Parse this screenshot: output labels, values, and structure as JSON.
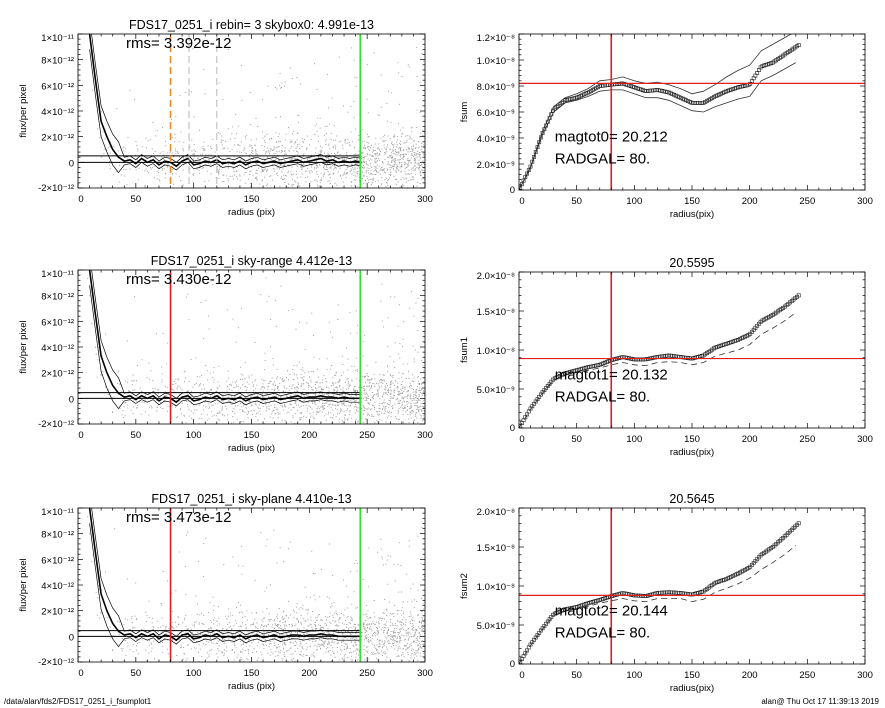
{
  "footer": {
    "path": "/data/alan/fds2/FDS17_0251_i_fsumplot1",
    "stamp": "alan@  Thu Oct 17 11:39:13 2019"
  },
  "colors": {
    "scatter": "#a0a0a0",
    "profile": "#000000",
    "orange": "#f08a1e",
    "red": "#e0201e",
    "green": "#33dd33",
    "grey_dash": "#b8b8b8"
  },
  "chart_data": [
    {
      "type": "scatter",
      "title": "FDS17_0251_i rebin= 3    skybox0:  4.991e-13",
      "annotation": "rms= 3.392e-12",
      "xlabel": "radius (pix)",
      "ylabel": "flux/per pixel",
      "xlim": [
        0,
        300
      ],
      "ylim": [
        -2e-12,
        1e-11
      ],
      "xticks": [
        0,
        50,
        100,
        150,
        200,
        250,
        300
      ],
      "yticks": [
        -2e-12,
        0,
        2e-12,
        4e-12,
        6e-12,
        8e-12,
        1e-11
      ],
      "ytick_labels": [
        "-2×10⁻¹²",
        "0",
        "2×10⁻¹²",
        "4×10⁻¹²",
        "6×10⁻¹²",
        "8×10⁻¹²",
        "1×10⁻¹¹"
      ],
      "hlines": [
        0,
        4.991e-13
      ],
      "vlines": [
        {
          "x": 80,
          "color": "orange",
          "dash": true
        },
        {
          "x": 96,
          "color": "grey_dash",
          "dash": true
        },
        {
          "x": 120,
          "color": "grey_dash",
          "dash": true
        },
        {
          "x": 244,
          "color": "green",
          "dash": false
        }
      ],
      "profile": {
        "r": [
          10,
          15,
          20,
          25,
          30,
          35,
          40,
          45,
          50,
          55,
          60,
          65,
          70,
          75,
          80,
          85,
          90,
          95,
          100,
          105,
          110,
          115,
          120,
          125,
          130,
          135,
          140,
          145,
          150,
          155,
          160,
          165,
          170,
          175,
          180,
          185,
          190,
          195,
          200,
          205,
          210,
          215,
          220,
          225,
          230,
          235,
          240,
          245
        ],
        "flux": [
          1e-11,
          6.5e-12,
          3.2e-12,
          2e-12,
          1e-12,
          4e-13,
          1e-13,
          2e-13,
          -1e-13,
          3e-13,
          0,
          2e-13,
          -2e-13,
          1e-13,
          0,
          -3e-13,
          1e-13,
          3e-13,
          -2e-13,
          -1e-13,
          1e-13,
          0,
          2e-13,
          -1e-13,
          0,
          -1e-13,
          1e-13,
          -2e-13,
          0,
          1e-13,
          -1e-13,
          0,
          1e-13,
          -1e-13,
          0,
          1e-13,
          2e-13,
          0,
          1e-13,
          2e-13,
          3e-13,
          1e-13,
          2e-13,
          0,
          1e-13,
          0,
          1e-13,
          0
        ]
      }
    },
    {
      "type": "line",
      "title": "",
      "annotation": "magtot0=  20.212",
      "annotation2": " RADGAL=     80.",
      "xlabel": "radius(pix)",
      "ylabel": "fsum",
      "xlim": [
        0,
        300
      ],
      "ylim": [
        0,
        1.2e-08
      ],
      "xticks": [
        0,
        50,
        100,
        150,
        200,
        250,
        300
      ],
      "yticks": [
        0,
        2e-09,
        4e-09,
        6e-09,
        8e-09,
        1e-08,
        1.2e-08
      ],
      "ytick_labels": [
        "0",
        "2.0×10⁻⁹",
        "4.0×10⁻⁹",
        "6.0×10⁻⁹",
        "8.0×10⁻⁹",
        "1.0×10⁻⁸",
        "1.2×10⁻⁸"
      ],
      "hline": 8.2e-09,
      "vline": 80,
      "envelope": "solid",
      "r": [
        0,
        10,
        20,
        30,
        40,
        50,
        60,
        70,
        80,
        90,
        100,
        110,
        120,
        130,
        140,
        150,
        160,
        170,
        180,
        190,
        200,
        210,
        220,
        230,
        240
      ],
      "fsum": [
        0,
        1.8e-09,
        4.3e-09,
        6.2e-09,
        6.9e-09,
        7.1e-09,
        7.5e-09,
        8e-09,
        8.1e-09,
        8.2e-09,
        7.9e-09,
        7.6e-09,
        7.7e-09,
        7.5e-09,
        7.1e-09,
        6.7e-09,
        6.7e-09,
        7.2e-09,
        7.6e-09,
        7.9e-09,
        8.1e-09,
        9.5e-09,
        9.8e-09,
        1.04e-08,
        1.1e-08
      ],
      "upper": [
        0,
        1.8e-09,
        4.4e-09,
        6.4e-09,
        7.1e-09,
        7.4e-09,
        7.8e-09,
        8.4e-09,
        8.5e-09,
        8.7e-09,
        8.4e-09,
        8.2e-09,
        8.3e-09,
        8.1e-09,
        7.8e-09,
        7.4e-09,
        7.6e-09,
        8.1e-09,
        8.7e-09,
        9.2e-09,
        9.6e-09,
        1.07e-08,
        1.12e-08,
        1.17e-08,
        1.22e-08
      ],
      "lower": [
        0,
        1.7e-09,
        4.2e-09,
        6e-09,
        6.7e-09,
        6.9e-09,
        7.2e-09,
        7.6e-09,
        7.7e-09,
        7.7e-09,
        7.4e-09,
        7.1e-09,
        7.1e-09,
        6.9e-09,
        6.5e-09,
        6.1e-09,
        6e-09,
        6.4e-09,
        6.7e-09,
        7e-09,
        7.2e-09,
        8.4e-09,
        8.8e-09,
        9.3e-09,
        9.8e-09
      ]
    },
    {
      "type": "scatter",
      "title": "FDS17_0251_i sky-range  4.412e-13",
      "annotation": "rms= 3.430e-12",
      "xlabel": "radius (pix)",
      "ylabel": "flux/per pixel",
      "xlim": [
        0,
        300
      ],
      "ylim": [
        -2e-12,
        1e-11
      ],
      "xticks": [
        0,
        50,
        100,
        150,
        200,
        250,
        300
      ],
      "yticks": [
        -2e-12,
        0,
        2e-12,
        4e-12,
        6e-12,
        8e-12,
        1e-11
      ],
      "ytick_labels": [
        "-2×10⁻¹²",
        "0",
        "2×10⁻¹²",
        "4×10⁻¹²",
        "6×10⁻¹²",
        "8×10⁻¹²",
        "1×10⁻¹¹"
      ],
      "hlines": [
        0,
        4.412e-13
      ],
      "vlines": [
        {
          "x": 80,
          "color": "red",
          "dash": false
        },
        {
          "x": 244,
          "color": "green",
          "dash": false
        }
      ],
      "profile": {
        "r": [
          10,
          15,
          20,
          25,
          30,
          35,
          40,
          45,
          50,
          55,
          60,
          65,
          70,
          75,
          80,
          85,
          90,
          95,
          100,
          105,
          110,
          115,
          120,
          125,
          130,
          135,
          140,
          145,
          150,
          155,
          160,
          165,
          170,
          175,
          180,
          185,
          190,
          195,
          200,
          205,
          210,
          215,
          220,
          225,
          230,
          235,
          240,
          245
        ],
        "flux": [
          1e-11,
          6.6e-12,
          3.3e-12,
          2e-12,
          1e-12,
          4e-13,
          1e-13,
          2e-13,
          -1e-13,
          2e-13,
          0,
          2e-13,
          -2e-13,
          1e-13,
          0,
          -3e-13,
          1e-13,
          2e-13,
          -2e-13,
          -1e-13,
          1e-13,
          0,
          2e-13,
          -1e-13,
          0,
          -1e-13,
          1e-13,
          -2e-13,
          0,
          1e-13,
          -1e-13,
          0,
          1e-13,
          -1e-13,
          0,
          1e-13,
          2e-13,
          0,
          1e-13,
          1e-13,
          2e-13,
          1e-13,
          1e-13,
          0,
          1e-13,
          0,
          0,
          0
        ]
      }
    },
    {
      "type": "line",
      "title": "20.5595",
      "annotation": "magtot1=  20.132",
      "annotation2": " RADGAL=     80.",
      "xlabel": "radius(pix)",
      "ylabel": "fsum1",
      "xlim": [
        0,
        300
      ],
      "ylim": [
        0,
        2e-08
      ],
      "xticks": [
        0,
        50,
        100,
        150,
        200,
        250,
        300
      ],
      "yticks": [
        0,
        5e-09,
        1e-08,
        1.5e-08,
        2e-08
      ],
      "ytick_labels": [
        "0",
        "5.0×10⁻⁹",
        "1.0×10⁻⁸",
        "1.5×10⁻⁸",
        "2.0×10⁻⁸"
      ],
      "hline": 8.9e-09,
      "vline": 80,
      "envelope": "dashed",
      "r": [
        0,
        10,
        20,
        30,
        40,
        50,
        60,
        70,
        80,
        90,
        100,
        110,
        120,
        130,
        140,
        150,
        160,
        170,
        180,
        190,
        200,
        210,
        220,
        230,
        240
      ],
      "fsum": [
        0,
        2.5e-09,
        4.5e-09,
        6.3e-09,
        7e-09,
        7.4e-09,
        7.8e-09,
        8.1e-09,
        8.7e-09,
        9.1e-09,
        8.8e-09,
        8.8e-09,
        9.1e-09,
        9.3e-09,
        9.1e-09,
        8.9e-09,
        9.3e-09,
        1.03e-08,
        1.08e-08,
        1.13e-08,
        1.2e-08,
        1.37e-08,
        1.45e-08,
        1.55e-08,
        1.67e-08
      ],
      "lower": [
        0,
        2.4e-09,
        4.4e-09,
        6.1e-09,
        6.8e-09,
        7.1e-09,
        7.4e-09,
        7.7e-09,
        8.1e-09,
        8.4e-09,
        8.1e-09,
        8e-09,
        8.4e-09,
        8.5e-09,
        8.4e-09,
        8.1e-09,
        8.4e-09,
        9.2e-09,
        9.6e-09,
        1e-08,
        1.07e-08,
        1.2e-08,
        1.28e-08,
        1.37e-08,
        1.48e-08
      ]
    },
    {
      "type": "scatter",
      "title": "FDS17_0251_i sky-plane  4.410e-13",
      "annotation": "rms= 3.473e-12",
      "xlabel": "radius (pix)",
      "ylabel": "flux/per pixel",
      "xlim": [
        0,
        300
      ],
      "ylim": [
        -2e-12,
        1e-11
      ],
      "xticks": [
        0,
        50,
        100,
        150,
        200,
        250,
        300
      ],
      "yticks": [
        -2e-12,
        0,
        2e-12,
        4e-12,
        6e-12,
        8e-12,
        1e-11
      ],
      "ytick_labels": [
        "-2×10⁻¹²",
        "0",
        "2×10⁻¹²",
        "4×10⁻¹²",
        "6×10⁻¹²",
        "8×10⁻¹²",
        "1×10⁻¹¹"
      ],
      "hlines": [
        0,
        4.41e-13
      ],
      "vlines": [
        {
          "x": 80,
          "color": "red",
          "dash": false
        },
        {
          "x": 244,
          "color": "green",
          "dash": false
        }
      ],
      "profile": {
        "r": [
          10,
          15,
          20,
          25,
          30,
          35,
          40,
          45,
          50,
          55,
          60,
          65,
          70,
          75,
          80,
          85,
          90,
          95,
          100,
          105,
          110,
          115,
          120,
          125,
          130,
          135,
          140,
          145,
          150,
          155,
          160,
          165,
          170,
          175,
          180,
          185,
          190,
          195,
          200,
          205,
          210,
          215,
          220,
          225,
          230,
          235,
          240,
          245
        ],
        "flux": [
          1e-11,
          6.6e-12,
          3.3e-12,
          2e-12,
          1e-12,
          4e-13,
          1e-13,
          2e-13,
          -1e-13,
          2e-13,
          0,
          2e-13,
          -2e-13,
          1e-13,
          0,
          -3e-13,
          1e-13,
          2e-13,
          -2e-13,
          -1e-13,
          1e-13,
          0,
          2e-13,
          -1e-13,
          0,
          -1e-13,
          1e-13,
          -2e-13,
          0,
          1e-13,
          -1e-13,
          0,
          1e-13,
          -1e-13,
          0,
          1e-13,
          1e-13,
          0,
          1e-13,
          1e-13,
          2e-13,
          1e-13,
          1e-13,
          0,
          0,
          0,
          0,
          0
        ]
      }
    },
    {
      "type": "line",
      "title": "20.5645",
      "annotation": "magtot2=  20.144",
      "annotation2": " RADGAL=     80.",
      "xlabel": "radius(pix)",
      "ylabel": "fsum2",
      "xlim": [
        0,
        300
      ],
      "ylim": [
        0,
        2e-08
      ],
      "xticks": [
        0,
        50,
        100,
        150,
        200,
        250,
        300
      ],
      "yticks": [
        0,
        5e-09,
        1e-08,
        1.5e-08,
        2e-08
      ],
      "ytick_labels": [
        "0",
        "5.0×10⁻⁹",
        "1.0×10⁻⁸",
        "1.5×10⁻⁸",
        "2.0×10⁻⁸"
      ],
      "hline": 8.8e-09,
      "vline": 80,
      "envelope": "dashed",
      "r": [
        0,
        10,
        20,
        30,
        40,
        50,
        60,
        70,
        80,
        90,
        100,
        110,
        120,
        130,
        140,
        150,
        160,
        170,
        180,
        190,
        200,
        210,
        220,
        230,
        240
      ],
      "fsum": [
        0,
        2.5e-09,
        4.5e-09,
        6.4e-09,
        7e-09,
        7.3e-09,
        7.8e-09,
        8.2e-09,
        8.7e-09,
        9.1e-09,
        8.8e-09,
        8.7e-09,
        9.1e-09,
        9.2e-09,
        9.1e-09,
        8.9e-09,
        9.3e-09,
        1.04e-08,
        1.09e-08,
        1.16e-08,
        1.24e-08,
        1.4e-08,
        1.5e-08,
        1.63e-08,
        1.77e-08
      ],
      "lower": [
        0,
        2.4e-09,
        4.4e-09,
        6.2e-09,
        6.8e-09,
        7e-09,
        7.4e-09,
        7.8e-09,
        8.1e-09,
        8.4e-09,
        8.1e-09,
        8e-09,
        8.4e-09,
        8.4e-09,
        8.4e-09,
        8e-09,
        8.3e-09,
        9.2e-09,
        9.7e-09,
        1.03e-08,
        1.1e-08,
        1.21e-08,
        1.3e-08,
        1.4e-08,
        1.52e-08
      ]
    }
  ]
}
